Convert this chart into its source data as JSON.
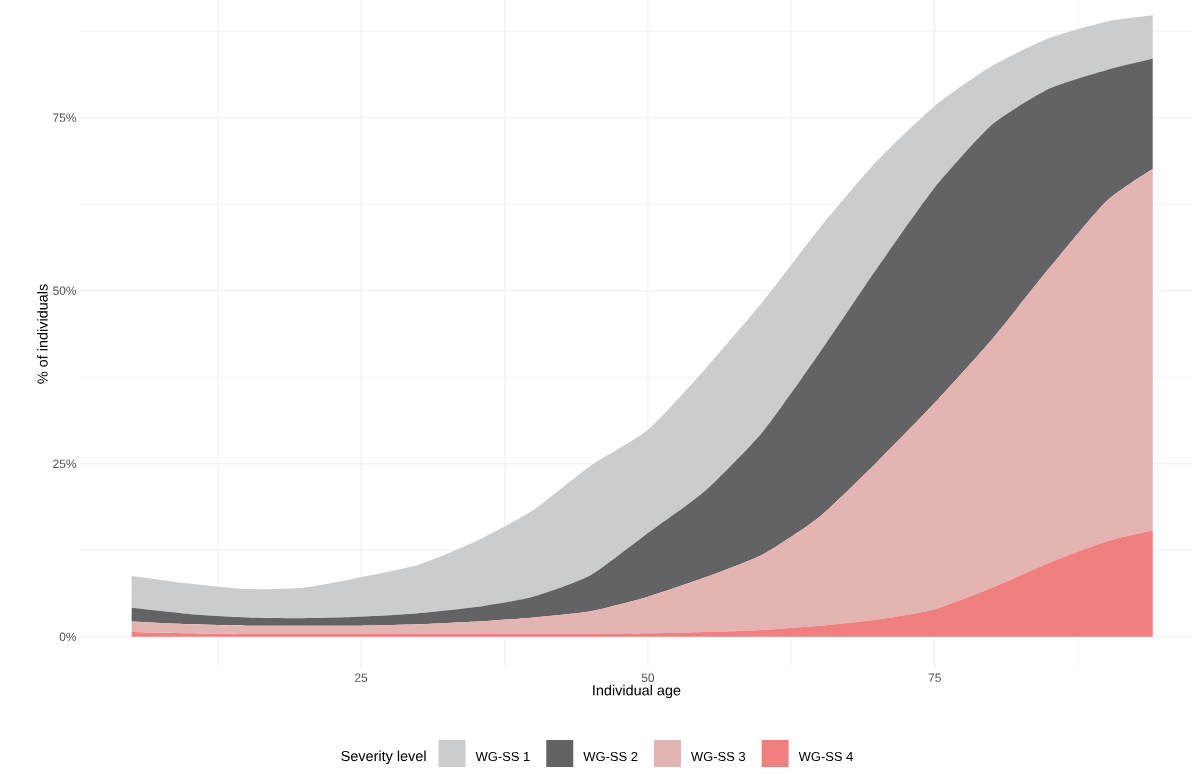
{
  "chart_data": {
    "type": "area",
    "stacked": true,
    "xlabel": "Individual age",
    "ylabel": "% of individuals",
    "legend_title": "Severity level",
    "legend": "bottom",
    "grid": true,
    "x": [
      5,
      10,
      15,
      20,
      25,
      30,
      35,
      40,
      45,
      50,
      55,
      60,
      65,
      70,
      75,
      80,
      85,
      90,
      94
    ],
    "series": [
      {
        "name": "WG-SS 4",
        "color": "#f08080",
        "values": [
          0.7,
          0.5,
          0.4,
          0.4,
          0.4,
          0.4,
          0.4,
          0.4,
          0.4,
          0.5,
          0.7,
          1.0,
          1.6,
          2.5,
          4.0,
          7.1,
          10.7,
          13.8,
          15.4
        ]
      },
      {
        "name": "WG-SS 3",
        "color": "#e4b4b3",
        "values": [
          1.5,
          1.3,
          1.2,
          1.2,
          1.2,
          1.4,
          1.8,
          2.4,
          3.3,
          5.3,
          7.9,
          10.9,
          15.8,
          22.8,
          29.8,
          35.9,
          42.6,
          49.2,
          52.2
        ]
      },
      {
        "name": "WG-SS 2",
        "color": "#636365",
        "values": [
          2.0,
          1.5,
          1.2,
          1.1,
          1.3,
          1.6,
          2.1,
          3.0,
          5.2,
          9.2,
          12.5,
          17.7,
          23.7,
          28.0,
          31.1,
          31.0,
          25.9,
          18.9,
          15.9
        ]
      },
      {
        "name": "WG-SS 1",
        "color": "#cbcccd",
        "values": [
          4.6,
          4.4,
          4.1,
          4.4,
          5.7,
          7.0,
          9.5,
          12.5,
          15.8,
          14.9,
          17.6,
          18.8,
          18.0,
          15.5,
          11.8,
          8.5,
          7.3,
          7.0,
          6.3
        ]
      }
    ],
    "xlim": [
      0.5,
      97.5
    ],
    "ylim": [
      -4.5,
      92
    ],
    "xticks": [
      {
        "value": 12.5,
        "label": null
      },
      25,
      {
        "value": 37.5,
        "label": null
      },
      50,
      {
        "value": 62.5,
        "label": null
      },
      75,
      {
        "value": 87.5,
        "label": null
      }
    ],
    "yticks": [
      {
        "value": 0,
        "label": "0%"
      },
      {
        "value": 12.5,
        "label": null
      },
      {
        "value": 25,
        "label": "25%"
      },
      {
        "value": 37.5,
        "label": null
      },
      {
        "value": 50,
        "label": "50%"
      },
      {
        "value": 62.5,
        "label": null
      },
      {
        "value": 75,
        "label": "75%"
      },
      {
        "value": 87.5,
        "label": null
      }
    ]
  }
}
